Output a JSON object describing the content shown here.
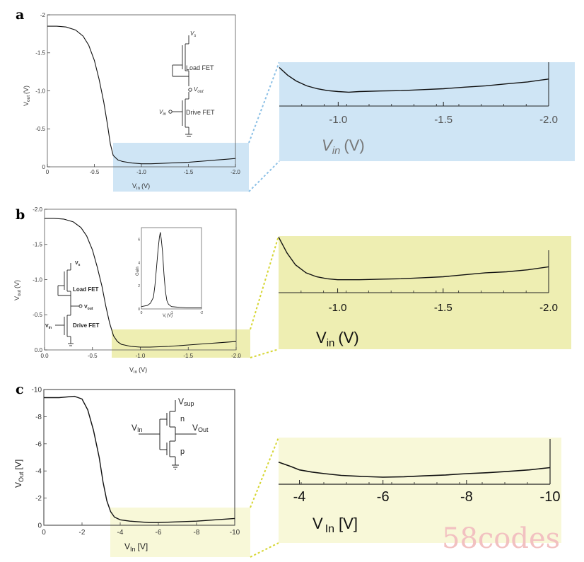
{
  "panels": {
    "a": {
      "letter": "a"
    },
    "b": {
      "letter": "b"
    },
    "c": {
      "letter": "c"
    }
  },
  "watermark": "58codes",
  "chart_data": [
    {
      "panel": "a",
      "type": "line",
      "xlabel_main": "V",
      "xlabel_sub": "in",
      "xlabel_unit": "(V)",
      "ylabel_main": "V",
      "ylabel_sub": "out",
      "ylabel_unit": "(V)",
      "xlim": [
        0,
        -2.0
      ],
      "ylim": [
        0,
        -2.0
      ],
      "x_tick_labels": [
        "0",
        "-0.5",
        "-1.0",
        "-1.5",
        "-2.0"
      ],
      "y_tick_labels": [
        "0",
        "-0.5",
        "-1.0",
        "-1.5",
        "-2"
      ],
      "series": [
        {
          "x": [
            0,
            -0.1,
            -0.2,
            -0.3,
            -0.38,
            -0.44,
            -0.5,
            -0.55,
            -0.6,
            -0.64,
            -0.67,
            -0.7,
            -0.75,
            -0.8,
            -0.9,
            -1.0,
            -1.1,
            -1.2,
            -1.3,
            -1.4,
            -1.5,
            -1.6,
            -1.7,
            -1.8,
            -1.9,
            -2.0
          ],
          "y": [
            -1.85,
            -1.85,
            -1.84,
            -1.8,
            -1.72,
            -1.6,
            -1.4,
            -1.15,
            -0.85,
            -0.55,
            -0.3,
            -0.15,
            -0.09,
            -0.07,
            -0.05,
            -0.04,
            -0.04,
            -0.045,
            -0.05,
            -0.055,
            -0.06,
            -0.07,
            -0.08,
            -0.09,
            -0.1,
            -0.11
          ]
        }
      ],
      "inset_labels": {
        "vs": "V",
        "vs_sub": "s",
        "load": "Load FET",
        "vout": "V",
        "vout_sub": "out",
        "vin": "V",
        "vin_sub": "in",
        "drive": "Drive FET"
      },
      "zoom": {
        "x_tick_labels": [
          "-1.0",
          "-1.5",
          "-2.0"
        ],
        "xlabel_main": "V",
        "xlabel_sub": "in",
        "xlabel_unit": "(V)",
        "xlim": [
          -0.72,
          -2.0
        ],
        "ylim": [
          0.03,
          -0.3
        ],
        "series": [
          {
            "x": [
              -0.72,
              -0.76,
              -0.8,
              -0.85,
              -0.9,
              -0.95,
              -1.0,
              -1.05,
              -1.1,
              -1.2,
              -1.3,
              -1.4,
              -1.5,
              -1.6,
              -1.7,
              -1.8,
              -1.9,
              -2.0
            ],
            "y": [
              -0.17,
              -0.13,
              -0.1,
              -0.075,
              -0.06,
              -0.05,
              -0.045,
              -0.042,
              -0.045,
              -0.048,
              -0.05,
              -0.055,
              -0.06,
              -0.068,
              -0.075,
              -0.085,
              -0.095,
              -0.11
            ]
          }
        ]
      }
    },
    {
      "panel": "b",
      "type": "line",
      "xlabel_main": "V",
      "xlabel_sub": "in",
      "xlabel_unit": "(V)",
      "ylabel_main": "V",
      "ylabel_sub": "out",
      "ylabel_unit": "(V)",
      "xlim": [
        0,
        -2.0
      ],
      "ylim": [
        0,
        -2.0
      ],
      "x_tick_labels": [
        "0.0",
        "-0.5",
        "-1.0",
        "-1.5",
        "-2.0"
      ],
      "y_tick_labels": [
        "0.0",
        "-0.5",
        "-1.0",
        "-1.5",
        "-2.0"
      ],
      "series": [
        {
          "x": [
            0,
            -0.1,
            -0.2,
            -0.3,
            -0.38,
            -0.44,
            -0.5,
            -0.55,
            -0.6,
            -0.64,
            -0.68,
            -0.72,
            -0.76,
            -0.8,
            -0.9,
            -1.0,
            -1.1,
            -1.2,
            -1.3,
            -1.4,
            -1.5,
            -1.6,
            -1.7,
            -1.8,
            -1.9,
            -2.0
          ],
          "y": [
            -1.87,
            -1.87,
            -1.86,
            -1.82,
            -1.74,
            -1.62,
            -1.42,
            -1.18,
            -0.9,
            -0.62,
            -0.38,
            -0.2,
            -0.12,
            -0.08,
            -0.05,
            -0.04,
            -0.04,
            -0.045,
            -0.05,
            -0.06,
            -0.07,
            -0.08,
            -0.09,
            -0.1,
            -0.11,
            -0.12
          ]
        }
      ],
      "inset_labels": {
        "vs": "V",
        "vs_sub": "s",
        "load": "Load FET",
        "vout": "V",
        "vout_sub": "out",
        "vin": "V",
        "vin_sub": "in",
        "drive": "Drive FET"
      },
      "gain_inset": {
        "ylabel": "Gain",
        "xlabel_main": "V",
        "xlabel_sub": "i",
        "xlabel_unit": "(V)",
        "xlim": [
          0,
          -2
        ],
        "ylim": [
          0,
          7
        ],
        "x_tick_labels": [
          "0",
          "-1",
          "-2"
        ],
        "y_tick_labels": [
          "0",
          "2",
          "4",
          "6"
        ],
        "series": [
          {
            "x": [
              0,
              -0.2,
              -0.3,
              -0.4,
              -0.45,
              -0.5,
              -0.55,
              -0.6,
              -0.63,
              -0.66,
              -0.7,
              -0.75,
              -0.8,
              -0.85,
              -0.9,
              -1.0,
              -1.2,
              -1.5,
              -2.0
            ],
            "y": [
              0.2,
              0.3,
              0.5,
              1.0,
              2.0,
              3.5,
              5.0,
              6.2,
              6.6,
              6.0,
              5.0,
              3.0,
              1.5,
              0.7,
              0.4,
              0.2,
              0.15,
              0.1,
              0.1
            ]
          }
        ]
      },
      "zoom": {
        "x_tick_labels": [
          "-1.0",
          "-1.5",
          "-2.0"
        ],
        "xlabel_main": "V",
        "xlabel_sub": "in",
        "xlabel_unit": "(V)",
        "xlim": [
          -0.72,
          -2.0
        ],
        "ylim": [
          0.02,
          -0.3
        ],
        "series": [
          {
            "x": [
              -0.72,
              -0.76,
              -0.8,
              -0.85,
              -0.9,
              -0.95,
              -1.0,
              -1.1,
              -1.2,
              -1.3,
              -1.4,
              -1.5,
              -1.6,
              -1.7,
              -1.8,
              -1.9,
              -2.0
            ],
            "y": [
              -0.26,
              -0.18,
              -0.12,
              -0.08,
              -0.06,
              -0.05,
              -0.045,
              -0.045,
              -0.048,
              -0.05,
              -0.055,
              -0.06,
              -0.07,
              -0.08,
              -0.085,
              -0.095,
              -0.11
            ]
          }
        ]
      }
    },
    {
      "panel": "c",
      "type": "line",
      "xlabel_main": "V",
      "xlabel_sub": "In",
      "xlabel_unit": "[V]",
      "ylabel_main": "V",
      "ylabel_sub": "Out",
      "ylabel_unit": "[V]",
      "xlim": [
        0,
        -10
      ],
      "ylim": [
        0,
        -10
      ],
      "x_tick_labels": [
        "0",
        "-2",
        "-4",
        "-6",
        "-8",
        "-10"
      ],
      "y_tick_labels": [
        "0",
        "-2",
        "-4",
        "-6",
        "-8",
        "-10"
      ],
      "series": [
        {
          "x": [
            0,
            -0.8,
            -1.6,
            -2.0,
            -2.3,
            -2.6,
            -2.9,
            -3.1,
            -3.3,
            -3.5,
            -3.7,
            -4.0,
            -4.5,
            -5.0,
            -5.5,
            -6.0,
            -7.0,
            -8.0,
            -9.0,
            -10.0
          ],
          "y": [
            -9.4,
            -9.4,
            -9.5,
            -9.3,
            -8.5,
            -7.0,
            -5.0,
            -3.2,
            -1.8,
            -1.0,
            -0.6,
            -0.4,
            -0.3,
            -0.25,
            -0.2,
            -0.2,
            -0.25,
            -0.3,
            -0.4,
            -0.5
          ]
        }
      ],
      "inset_labels": {
        "vsup": "V",
        "vsup_sub": "sup",
        "n": "n",
        "vin": "V",
        "vin_sub": "In",
        "vout": "V",
        "vout_sub": "Out",
        "p": "p"
      },
      "zoom": {
        "x_tick_labels": [
          "-4",
          "-6",
          "-8",
          "-10"
        ],
        "xlabel_main": "V",
        "xlabel_sub": "In",
        "xlabel_unit": "[V]",
        "xlim": [
          -3.5,
          -10.0
        ],
        "ylim": [
          0.1,
          -2.2
        ],
        "series": [
          {
            "x": [
              -3.5,
              -3.8,
              -4.0,
              -4.3,
              -4.6,
              -5.0,
              -5.5,
              -6.0,
              -6.5,
              -7.0,
              -7.5,
              -8.0,
              -8.5,
              -9.0,
              -9.5,
              -10.0
            ],
            "y": [
              -0.9,
              -0.7,
              -0.55,
              -0.45,
              -0.38,
              -0.3,
              -0.25,
              -0.22,
              -0.24,
              -0.28,
              -0.32,
              -0.38,
              -0.42,
              -0.48,
              -0.55,
              -0.65
            ]
          }
        ]
      }
    }
  ]
}
